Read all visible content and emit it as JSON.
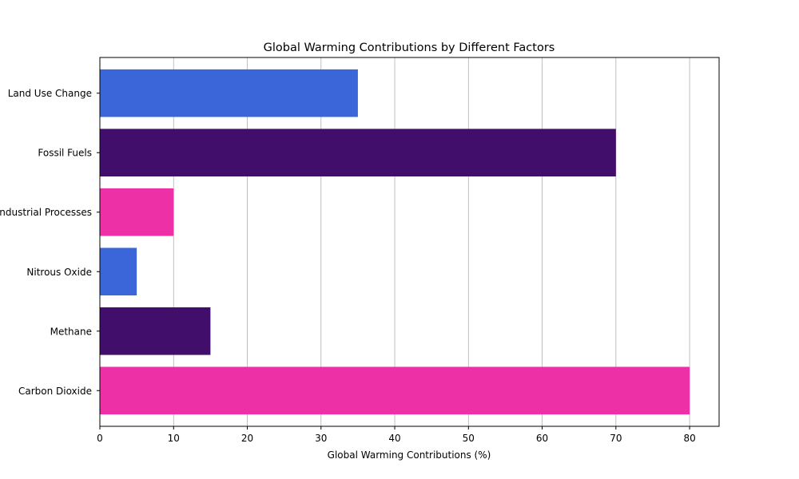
{
  "chart_data": {
    "type": "bar",
    "orientation": "horizontal",
    "title": "Global Warming Contributions by Different Factors",
    "xlabel": "Global Warming Contributions (%)",
    "ylabel": "",
    "xlim": [
      0,
      84
    ],
    "x_ticks": [
      "0",
      "10",
      "20",
      "30",
      "40",
      "50",
      "60",
      "70",
      "80"
    ],
    "grid": "x-axis vertical lines",
    "categories": [
      "Carbon Dioxide",
      "Methane",
      "Nitrous Oxide",
      "Industrial Processes",
      "Fossil Fuels",
      "Land Use Change"
    ],
    "values": [
      80,
      15,
      5,
      10,
      70,
      35
    ],
    "bar_colors": [
      "#ee30a6",
      "#420e6c",
      "#3a66d9",
      "#ee30a6",
      "#420e6c",
      "#3a66d9"
    ]
  }
}
